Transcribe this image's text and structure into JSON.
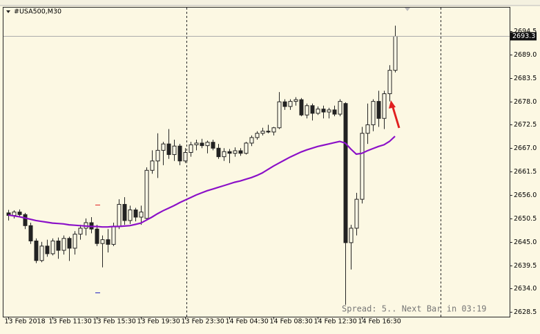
{
  "chart_data": {
    "type": "candlestick",
    "title": "#USA500,M30",
    "x": [
      "13 Feb 2018",
      null,
      null,
      null,
      null,
      null,
      null,
      null,
      "13 Feb 11:30",
      null,
      null,
      null,
      null,
      null,
      null,
      null,
      "13 Feb 15:30",
      null,
      null,
      null,
      null,
      null,
      null,
      null,
      "13 Feb 19:30",
      null,
      null,
      null,
      null,
      null,
      null,
      null,
      "13 Feb 23:30",
      null,
      null,
      null,
      null,
      null,
      null,
      null,
      "14 Feb 04:30",
      null,
      null,
      null,
      null,
      null,
      null,
      null,
      "14 Feb 08:30",
      null,
      null,
      null,
      null,
      null,
      null,
      null,
      "14 Feb 12:30",
      null,
      null,
      null,
      null,
      null,
      null,
      null,
      "14 Feb 16:30",
      null,
      null,
      null,
      null,
      null,
      null
    ],
    "open": [
      2651.8,
      2651.2,
      2652.0,
      2651.4,
      2648.8,
      2645.2,
      2640.6,
      2644.0,
      2642.2,
      2645.2,
      2643.0,
      2645.8,
      2643.5,
      2646.8,
      2648.2,
      2649.5,
      2648.0,
      2644.6,
      2645.5,
      2644.4,
      2648.6,
      2653.8,
      2650.0,
      2652.5,
      2650.8,
      2650.5,
      2661.8,
      2664.0,
      2666.5,
      2668.0,
      2665.5,
      2667.5,
      2664.0,
      2666.0,
      2667.8,
      2668.2,
      2667.6,
      2668.4,
      2667.0,
      2665.0,
      2666.2,
      2665.8,
      2666.4,
      2665.8,
      2668.2,
      2669.5,
      2670.5,
      2671.0,
      2670.8,
      2671.8,
      2677.9,
      2676.8,
      2678.0,
      2678.4,
      2674.8,
      2677.0,
      2675.2,
      2676.2,
      2675.5,
      2676.0,
      2675.0,
      2677.5,
      2644.8,
      2648.2,
      2655.0,
      2670.5,
      2672.5,
      2678.0,
      2674.0,
      2679.8,
      2685.3
    ],
    "high": [
      2652.5,
      2652.4,
      2652.6,
      2651.8,
      2649.5,
      2645.8,
      2645.0,
      2645.5,
      2645.8,
      2646.0,
      2646.5,
      2646.2,
      2647.5,
      2649.0,
      2650.5,
      2650.8,
      2649.0,
      2646.5,
      2648.0,
      2649.5,
      2655.0,
      2655.5,
      2653.5,
      2653.0,
      2653.5,
      2662.5,
      2666.5,
      2670.5,
      2668.5,
      2671.5,
      2669.0,
      2668.0,
      2667.0,
      2668.5,
      2669.0,
      2669.2,
      2668.8,
      2669.0,
      2668.0,
      2667.0,
      2666.8,
      2667.2,
      2667.0,
      2668.5,
      2670.0,
      2671.0,
      2671.8,
      2672.5,
      2672.0,
      2680.2,
      2678.5,
      2678.5,
      2679.0,
      2678.8,
      2677.5,
      2677.5,
      2676.8,
      2677.0,
      2676.5,
      2677.0,
      2678.5,
      2677.8,
      2649.0,
      2656.5,
      2672.0,
      2677.5,
      2678.5,
      2680.5,
      2680.5,
      2686.5,
      2695.8
    ],
    "low": [
      2650.0,
      2650.5,
      2651.0,
      2648.0,
      2644.5,
      2640.0,
      2640.2,
      2641.5,
      2641.8,
      2641.0,
      2642.0,
      2640.5,
      2642.0,
      2645.5,
      2646.5,
      2647.0,
      2644.0,
      2639.0,
      2642.5,
      2644.0,
      2648.0,
      2649.0,
      2649.2,
      2649.8,
      2649.0,
      2650.0,
      2661.0,
      2660.0,
      2663.0,
      2664.5,
      2664.0,
      2663.0,
      2663.5,
      2665.0,
      2666.5,
      2667.0,
      2665.8,
      2666.5,
      2664.5,
      2664.0,
      2663.5,
      2665.0,
      2665.2,
      2665.5,
      2667.5,
      2669.0,
      2670.0,
      2670.5,
      2670.0,
      2671.5,
      2676.0,
      2676.0,
      2677.0,
      2674.5,
      2674.0,
      2673.5,
      2674.8,
      2674.0,
      2674.0,
      2674.5,
      2674.5,
      2630.2,
      2638.5,
      2646.5,
      2654.0,
      2668.0,
      2671.0,
      2672.0,
      2671.5,
      2678.0,
      2684.8
    ],
    "close": [
      2651.2,
      2652.0,
      2651.4,
      2648.8,
      2645.2,
      2640.6,
      2644.0,
      2642.2,
      2645.2,
      2643.0,
      2645.8,
      2643.5,
      2646.8,
      2648.2,
      2649.5,
      2648.0,
      2644.6,
      2645.5,
      2644.4,
      2648.6,
      2653.8,
      2650.0,
      2652.5,
      2650.8,
      2652.0,
      2661.8,
      2664.0,
      2666.5,
      2668.0,
      2665.5,
      2667.5,
      2664.0,
      2666.0,
      2667.8,
      2668.2,
      2667.6,
      2668.4,
      2667.0,
      2665.0,
      2666.2,
      2665.8,
      2666.4,
      2665.8,
      2668.2,
      2669.5,
      2670.5,
      2671.0,
      2670.8,
      2671.8,
      2677.9,
      2676.8,
      2678.0,
      2678.4,
      2674.8,
      2677.0,
      2675.2,
      2676.2,
      2675.5,
      2676.0,
      2675.0,
      2678.0,
      2644.8,
      2648.2,
      2655.0,
      2670.5,
      2672.5,
      2678.0,
      2674.0,
      2679.8,
      2685.3,
      2693.3
    ],
    "up_color": "#fdfbe8",
    "down_color": "#222222",
    "edge_color": "#222222",
    "ma": {
      "color": "#8b10c8",
      "values": [
        2651.3,
        2651.1,
        2650.9,
        2650.6,
        2650.3,
        2650.0,
        2649.8,
        2649.6,
        2649.4,
        2649.3,
        2649.2,
        2649.0,
        2648.9,
        2648.8,
        2648.7,
        2648.6,
        2648.6,
        2648.5,
        2648.5,
        2648.6,
        2648.6,
        2648.7,
        2648.8,
        2649.1,
        2649.4,
        2650.1,
        2650.8,
        2651.6,
        2652.3,
        2652.9,
        2653.5,
        2654.2,
        2654.8,
        2655.4,
        2656.0,
        2656.5,
        2657.0,
        2657.4,
        2657.8,
        2658.2,
        2658.6,
        2659.0,
        2659.3,
        2659.7,
        2660.1,
        2660.6,
        2661.2,
        2662.0,
        2662.8,
        2663.5,
        2664.2,
        2664.9,
        2665.5,
        2666.1,
        2666.6,
        2667.0,
        2667.4,
        2667.7,
        2668.0,
        2668.3,
        2668.6,
        2668.2,
        2666.8,
        2665.6,
        2665.8,
        2666.4,
        2666.9,
        2667.4,
        2667.8,
        2668.6,
        2669.8
      ]
    },
    "current_price": {
      "value": 2693.3,
      "label": "2693.3"
    },
    "ylim": [
      2627.4,
      2700.2
    ],
    "yticks": [
      2694.5,
      {
        "value": 2689,
        "label": "2689.0"
      },
      2683.5,
      {
        "value": 2678,
        "label": "2678.0"
      },
      2672.5,
      {
        "value": 2667,
        "label": "2667.0"
      },
      2661.5,
      {
        "value": 2656,
        "label": "2656.0"
      },
      2650.5,
      {
        "value": 2645,
        "label": "2645.0"
      },
      2639.5,
      {
        "value": 2634,
        "label": "2634.0"
      },
      2628.5
    ],
    "annotation": "Spread: 5.. Next Bar in 03:19"
  }
}
